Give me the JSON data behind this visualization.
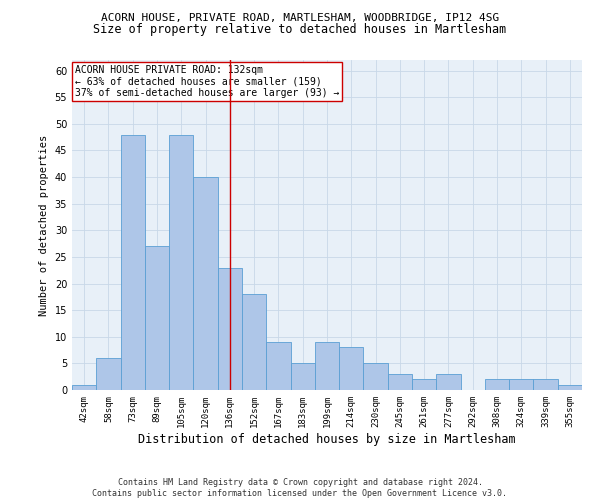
{
  "title1": "ACORN HOUSE, PRIVATE ROAD, MARTLESHAM, WOODBRIDGE, IP12 4SG",
  "title2": "Size of property relative to detached houses in Martlesham",
  "xlabel": "Distribution of detached houses by size in Martlesham",
  "ylabel": "Number of detached properties",
  "categories": [
    "42sqm",
    "58sqm",
    "73sqm",
    "89sqm",
    "105sqm",
    "120sqm",
    "136sqm",
    "152sqm",
    "167sqm",
    "183sqm",
    "199sqm",
    "214sqm",
    "230sqm",
    "245sqm",
    "261sqm",
    "277sqm",
    "292sqm",
    "308sqm",
    "324sqm",
    "339sqm",
    "355sqm"
  ],
  "values": [
    1,
    6,
    48,
    27,
    48,
    40,
    23,
    18,
    9,
    5,
    9,
    8,
    5,
    3,
    2,
    3,
    0,
    2,
    2,
    2,
    1
  ],
  "bar_color": "#aec6e8",
  "bar_edge_color": "#5a9fd4",
  "vline_x": 6,
  "vline_color": "#cc0000",
  "annotation_line1": "ACORN HOUSE PRIVATE ROAD: 132sqm",
  "annotation_line2": "← 63% of detached houses are smaller (159)",
  "annotation_line3": "37% of semi-detached houses are larger (93) →",
  "annotation_box_color": "#ffffff",
  "annotation_box_edge_color": "#cc0000",
  "ylim": [
    0,
    62
  ],
  "yticks": [
    0,
    5,
    10,
    15,
    20,
    25,
    30,
    35,
    40,
    45,
    50,
    55,
    60
  ],
  "grid_color": "#c8d8e8",
  "bg_color": "#e8f0f8",
  "footer": "Contains HM Land Registry data © Crown copyright and database right 2024.\nContains public sector information licensed under the Open Government Licence v3.0.",
  "title1_fontsize": 8,
  "title2_fontsize": 8.5,
  "xlabel_fontsize": 8.5,
  "ylabel_fontsize": 7.5,
  "annotation_fontsize": 7,
  "footer_fontsize": 6,
  "tick_fontsize": 6.5,
  "ytick_fontsize": 7
}
